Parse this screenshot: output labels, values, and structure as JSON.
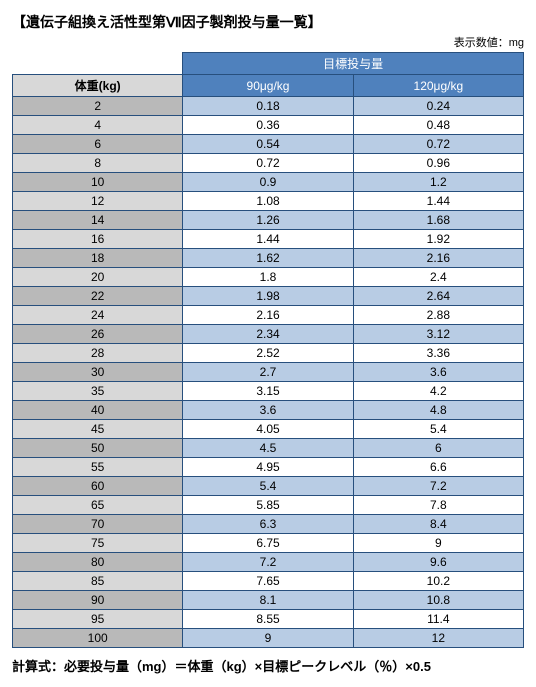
{
  "title": "【遺伝子組換え活性型第Ⅶ因子製剤投与量一覧】",
  "unit_note": "表示数値：mg",
  "headers": {
    "target": "目標投与量",
    "weight": "体重(kg)",
    "dose90": "90μg/kg",
    "dose120": "120μg/kg"
  },
  "rows": [
    {
      "w": "2",
      "a": "0.18",
      "b": "0.24"
    },
    {
      "w": "4",
      "a": "0.36",
      "b": "0.48"
    },
    {
      "w": "6",
      "a": "0.54",
      "b": "0.72"
    },
    {
      "w": "8",
      "a": "0.72",
      "b": "0.96"
    },
    {
      "w": "10",
      "a": "0.9",
      "b": "1.2"
    },
    {
      "w": "12",
      "a": "1.08",
      "b": "1.44"
    },
    {
      "w": "14",
      "a": "1.26",
      "b": "1.68"
    },
    {
      "w": "16",
      "a": "1.44",
      "b": "1.92"
    },
    {
      "w": "18",
      "a": "1.62",
      "b": "2.16"
    },
    {
      "w": "20",
      "a": "1.8",
      "b": "2.4"
    },
    {
      "w": "22",
      "a": "1.98",
      "b": "2.64"
    },
    {
      "w": "24",
      "a": "2.16",
      "b": "2.88"
    },
    {
      "w": "26",
      "a": "2.34",
      "b": "3.12"
    },
    {
      "w": "28",
      "a": "2.52",
      "b": "3.36"
    },
    {
      "w": "30",
      "a": "2.7",
      "b": "3.6"
    },
    {
      "w": "35",
      "a": "3.15",
      "b": "4.2"
    },
    {
      "w": "40",
      "a": "3.6",
      "b": "4.8"
    },
    {
      "w": "45",
      "a": "4.05",
      "b": "5.4"
    },
    {
      "w": "50",
      "a": "4.5",
      "b": "6"
    },
    {
      "w": "55",
      "a": "4.95",
      "b": "6.6"
    },
    {
      "w": "60",
      "a": "5.4",
      "b": "7.2"
    },
    {
      "w": "65",
      "a": "5.85",
      "b": "7.8"
    },
    {
      "w": "70",
      "a": "6.3",
      "b": "8.4"
    },
    {
      "w": "75",
      "a": "6.75",
      "b": "9"
    },
    {
      "w": "80",
      "a": "7.2",
      "b": "9.6"
    },
    {
      "w": "85",
      "a": "7.65",
      "b": "10.2"
    },
    {
      "w": "90",
      "a": "8.1",
      "b": "10.8"
    },
    {
      "w": "95",
      "a": "8.55",
      "b": "11.4"
    },
    {
      "w": "100",
      "a": "9",
      "b": "12"
    }
  ],
  "formula": "計算式：必要投与量（mg）＝体重（kg）×目標ピークレベル（％）×0.5",
  "colors": {
    "border": "#274f7d",
    "header_bg": "#4f81bd",
    "header_fg": "#ffffff",
    "weight_dark": "#b9b9b9",
    "weight_light": "#d8d8d8",
    "value_blue": "#b8cce4",
    "value_white": "#ffffff"
  }
}
